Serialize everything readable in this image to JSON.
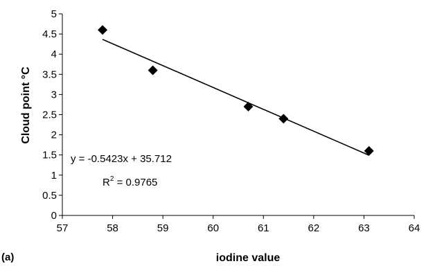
{
  "chart_data": {
    "type": "scatter",
    "xlabel": "iodine value",
    "ylabel": "Cloud point °C",
    "xlim": [
      57,
      64
    ],
    "ylim": [
      0,
      5
    ],
    "x_ticks": [
      "57",
      "58",
      "59",
      "60",
      "61",
      "62",
      "63",
      "64"
    ],
    "y_ticks": [
      "0",
      "0.5",
      "1",
      "1.5",
      "2",
      "2.5",
      "3",
      "3.5",
      "4",
      "4.5",
      "5"
    ],
    "points": [
      {
        "x": 57.8,
        "y": 4.6
      },
      {
        "x": 58.8,
        "y": 3.6
      },
      {
        "x": 60.7,
        "y": 2.7
      },
      {
        "x": 61.4,
        "y": 2.4
      },
      {
        "x": 63.1,
        "y": 1.6
      }
    ],
    "trendline": {
      "slope": -0.5423,
      "intercept": 35.712,
      "x_range": [
        57.8,
        63.1
      ],
      "equation": "y = -0.5423x + 35.712",
      "r2_prefix": "R",
      "r2_sup": "2",
      "r2_value": " = 0.9765"
    },
    "panel_label": "(a)",
    "grid": false,
    "marker": "diamond",
    "color": "#000000"
  }
}
